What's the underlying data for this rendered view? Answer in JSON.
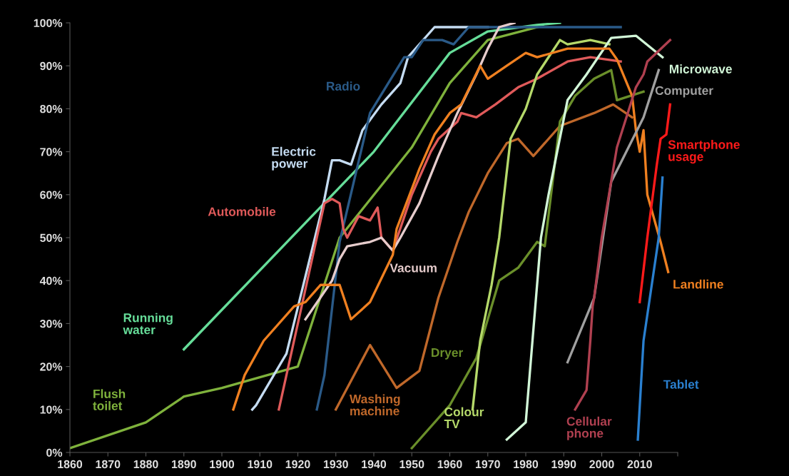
{
  "chart_data": {
    "type": "line",
    "xlim": [
      1860,
      2020
    ],
    "ylim": [
      0,
      100
    ],
    "xticks": [
      1860,
      1870,
      1880,
      1890,
      1900,
      1910,
      1920,
      1930,
      1940,
      1950,
      1960,
      1970,
      1980,
      1990,
      2000,
      2010,
      {
        "value": 2020,
        "label": null
      }
    ],
    "yticks": [
      {
        "value": 0,
        "label": "0%"
      },
      {
        "value": 10,
        "label": "10%"
      },
      {
        "value": 20,
        "label": "20%"
      },
      {
        "value": 30,
        "label": "30%"
      },
      {
        "value": 40,
        "label": "40%"
      },
      {
        "value": 50,
        "label": "50%"
      },
      {
        "value": 60,
        "label": "60%"
      },
      {
        "value": 70,
        "label": "70%"
      },
      {
        "value": 80,
        "label": "80%"
      },
      {
        "value": 90,
        "label": "90%"
      },
      {
        "value": 100,
        "label": "100%"
      }
    ],
    "grid": false,
    "legend": false,
    "marker": "none",
    "line_style": "solid",
    "series": [
      {
        "name": "Flush toilet",
        "color": "#7fb23c",
        "x": [
          1860,
          1880,
          1890,
          1900,
          1920,
          1931,
          1950,
          1960,
          1970,
          1983
        ],
        "values": [
          1,
          7,
          13,
          15,
          20,
          50,
          71,
          86,
          96,
          99
        ]
      },
      {
        "name": "Running water",
        "color": "#66dd99",
        "x": [
          1890,
          1940,
          1960,
          1970,
          1983,
          1989
        ],
        "values": [
          24,
          70,
          93,
          98,
          99.5,
          100
        ]
      },
      {
        "name": "Electric power",
        "color": "#c5dcf2",
        "x": [
          1908,
          1909,
          1917,
          1927,
          1929,
          1931,
          1934,
          1937,
          1942,
          1947,
          1949,
          1956,
          1970
        ],
        "values": [
          10,
          11,
          23,
          59,
          68,
          68,
          67,
          75,
          81,
          86,
          92,
          99,
          99
        ]
      },
      {
        "name": "Radio",
        "color": "#2a5a88",
        "x": [
          1925,
          1927,
          1931,
          1939,
          1948,
          1950,
          1953,
          1958,
          1961,
          1965,
          2005
        ],
        "values": [
          10,
          18,
          49,
          79,
          92,
          92,
          96,
          96,
          95,
          99,
          99
        ]
      },
      {
        "name": "Automobile",
        "color": "#e05a5a",
        "x": [
          1915,
          1925,
          1927,
          1929,
          1931,
          1932,
          1933,
          1936,
          1939,
          1941,
          1942,
          1945,
          1950,
          1955,
          1957,
          1962,
          1963,
          1967,
          1972,
          1978,
          1983,
          1991,
          1997,
          2005
        ],
        "values": [
          10,
          50,
          58,
          59,
          58,
          52,
          50,
          55,
          54,
          57,
          50,
          47,
          60,
          70,
          73,
          77,
          79,
          78,
          81,
          85,
          87,
          91,
          92,
          91
        ]
      },
      {
        "name": "Vacuum",
        "color": "#e6cccc",
        "x": [
          1922,
          1929,
          1931,
          1933,
          1939,
          1942,
          1945,
          1947,
          1952,
          1957,
          1962,
          1967,
          1970,
          1973,
          1977
        ],
        "values": [
          31,
          40,
          45,
          48,
          49,
          50,
          47,
          50,
          58,
          69,
          79,
          88,
          94,
          99,
          100
        ]
      },
      {
        "name": "Washing machine",
        "color": "#c0682a",
        "x": [
          1930,
          1939,
          1946,
          1952,
          1957,
          1962,
          1965,
          1970,
          1975,
          1978,
          1982,
          1989,
          1998,
          2003,
          2008
        ],
        "values": [
          10,
          25,
          15,
          19,
          36,
          49,
          56,
          65,
          72,
          73,
          69,
          76,
          79,
          81,
          78
        ]
      },
      {
        "name": "Dryer",
        "color": "#6a8f2a",
        "x": [
          1950,
          1960,
          1967,
          1973,
          1978,
          1983,
          1985,
          1989,
          1993,
          1998,
          2002.5,
          2004,
          2011
        ],
        "values": [
          1,
          11,
          22,
          40,
          43,
          49,
          48,
          77,
          83,
          87,
          89,
          82,
          84
        ]
      },
      {
        "name": "Colour TV",
        "color": "#b5d96a",
        "x": [
          1966,
          1968,
          1971,
          1973,
          1976,
          1980,
          1983,
          1989,
          1991,
          1997,
          2002
        ],
        "values": [
          10,
          26,
          39,
          50,
          73,
          80,
          88,
          96,
          95,
          96,
          95
        ]
      },
      {
        "name": "Microwave",
        "color": "#d2f7d8",
        "x": [
          1975,
          1980,
          1984,
          1986,
          1991,
          1996,
          2002.5,
          2009,
          2016
        ],
        "values": [
          3,
          7,
          50,
          60,
          82,
          88,
          96.5,
          97,
          92
        ]
      },
      {
        "name": "Landline",
        "color": "#f08020",
        "x": [
          1903,
          1906,
          1911,
          1919,
          1922,
          1926,
          1931,
          1934,
          1939,
          1945,
          1946,
          1952,
          1956,
          1960,
          1963,
          1968,
          1970,
          1975,
          1980,
          1983,
          1991,
          2002,
          2004,
          2008,
          2009,
          2010,
          2011,
          2012,
          2015.5,
          2017.5
        ],
        "values": [
          10,
          18,
          26,
          34,
          35,
          39,
          39,
          31,
          35,
          46,
          52,
          66,
          74,
          79,
          81,
          90,
          87,
          90,
          93,
          92,
          94,
          94,
          91.5,
          83,
          75,
          70,
          75,
          60,
          49,
          42
        ]
      },
      {
        "name": "Computer",
        "color": "#a0a0a0",
        "x": [
          1991,
          1998,
          2002.5,
          2011,
          2015
        ],
        "values": [
          21,
          36,
          63,
          78,
          89
        ]
      },
      {
        "name": "Cellular phone",
        "color": "#b04050",
        "x": [
          1993,
          1996,
          1997,
          1997.6,
          1998,
          2000,
          2004,
          2009,
          2011,
          2012,
          2018
        ],
        "values": [
          10,
          14.5,
          26,
          34,
          36,
          50,
          71,
          85,
          88,
          91,
          96
        ]
      },
      {
        "name": "Smartphone usage",
        "color": "#ff1a1a",
        "x": [
          2010,
          2012,
          2014.5,
          2015.5,
          2017,
          2018
        ],
        "values": [
          35,
          50,
          67,
          73,
          74,
          81
        ]
      },
      {
        "name": "Tablet",
        "color": "#2a80d0",
        "x": [
          2009.5,
          2011,
          2015,
          2016
        ],
        "values": [
          3,
          26,
          50,
          64
        ]
      }
    ]
  }
}
